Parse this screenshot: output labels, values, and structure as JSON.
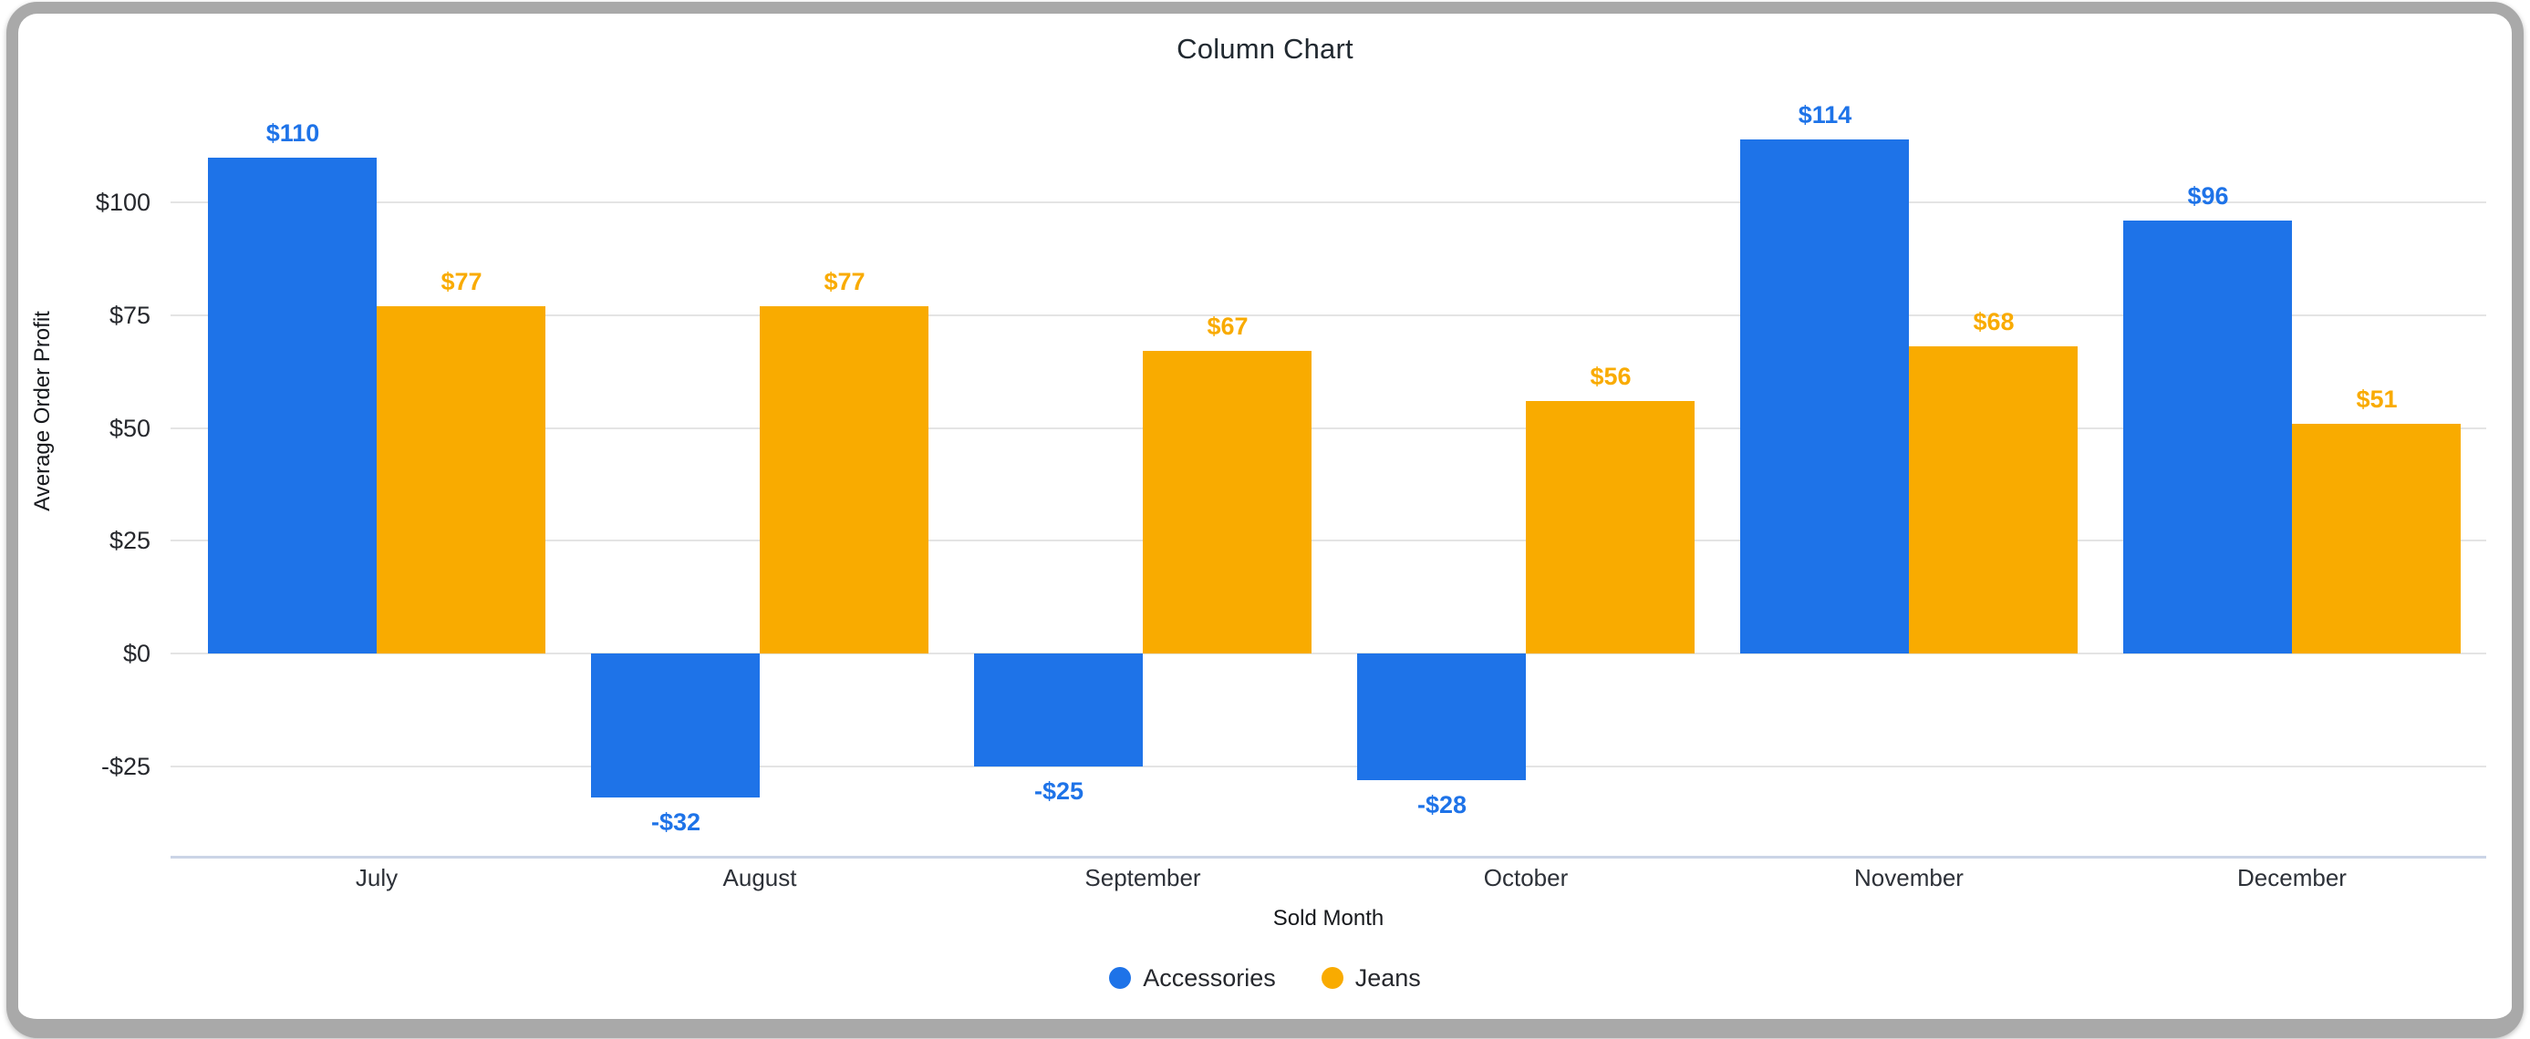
{
  "window": {
    "title": "Column Chart"
  },
  "chart_data": {
    "type": "bar",
    "title": "Column Chart",
    "xlabel": "Sold Month",
    "ylabel": "Average Order Profit",
    "categories": [
      "July",
      "August",
      "September",
      "October",
      "November",
      "December"
    ],
    "series": [
      {
        "name": "Accessories",
        "color": "#1E73E8",
        "values": [
          110,
          -32,
          -25,
          -28,
          114,
          96
        ],
        "data_labels": [
          "$110",
          "-$32",
          "-$25",
          "-$28",
          "$114",
          "$96"
        ]
      },
      {
        "name": "Jeans",
        "color": "#F9AB00",
        "values": [
          77,
          77,
          67,
          56,
          68,
          51
        ],
        "data_labels": [
          "$77",
          "$77",
          "$67",
          "$56",
          "$68",
          "$51"
        ]
      }
    ],
    "y_ticks": [
      {
        "value": 100,
        "label": "$100"
      },
      {
        "value": 75,
        "label": "$75"
      },
      {
        "value": 50,
        "label": "$50"
      },
      {
        "value": 25,
        "label": "$25"
      },
      {
        "value": 0,
        "label": "$0"
      },
      {
        "value": -25,
        "label": "-$25"
      }
    ],
    "ylim": [
      -45,
      124
    ],
    "grid": true,
    "legend_position": "bottom"
  },
  "colors": {
    "accessories": "#1E73E8",
    "jeans": "#F9AB00",
    "gridline": "#e4e4e4",
    "axis_line": "#cbd4e6",
    "frame": "#a9a9a9",
    "title_text": "#212930"
  }
}
